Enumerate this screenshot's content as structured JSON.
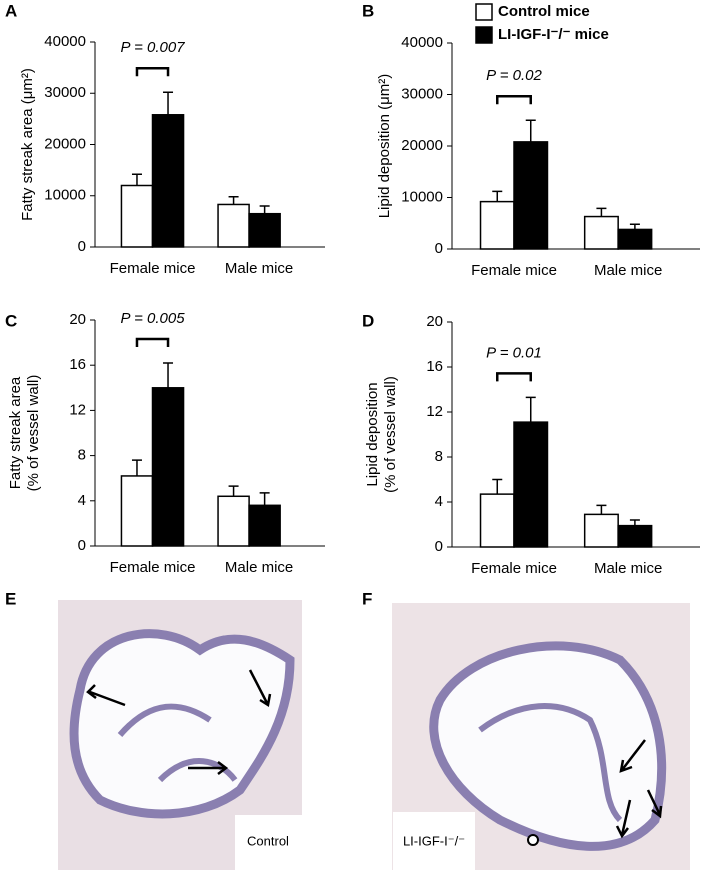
{
  "chart_data": [
    {
      "type": "bar",
      "panel_label": "A",
      "ylabel": [
        "Fatty streak  area (μm²)"
      ],
      "categories": [
        "Female mice",
        "Male mice"
      ],
      "series": [
        {
          "name": "Control mice",
          "color": "#ffffff",
          "values": [
            12000,
            8300
          ],
          "errors": [
            2200,
            1500
          ]
        },
        {
          "name": "LI-IGF-I⁻/⁻ mice",
          "color": "#000000",
          "values": [
            25800,
            6500
          ],
          "errors": [
            4400,
            1500
          ]
        }
      ],
      "ylim": [
        0,
        40000
      ],
      "yticks": [
        0,
        10000,
        20000,
        30000,
        40000
      ],
      "annotation": "P = 0.007"
    },
    {
      "type": "bar",
      "panel_label": "B",
      "ylabel": [
        "Lipid deposition  (μm²)"
      ],
      "categories": [
        "Female mice",
        "Male mice"
      ],
      "series": [
        {
          "name": "Control mice",
          "color": "#ffffff",
          "values": [
            9200,
            6300
          ],
          "errors": [
            2000,
            1600
          ]
        },
        {
          "name": "LI-IGF-I⁻/⁻ mice",
          "color": "#000000",
          "values": [
            20800,
            3800
          ],
          "errors": [
            4200,
            1000
          ]
        }
      ],
      "ylim": [
        0,
        40000
      ],
      "yticks": [
        0,
        10000,
        20000,
        30000,
        40000
      ],
      "annotation": "P = 0.02",
      "legend": true
    },
    {
      "type": "bar",
      "panel_label": "C",
      "ylabel": [
        "Fatty streak area",
        "(% of vessel wall)"
      ],
      "categories": [
        "Female mice",
        "Male mice"
      ],
      "series": [
        {
          "name": "Control mice",
          "color": "#ffffff",
          "values": [
            6.2,
            4.4
          ],
          "errors": [
            1.4,
            0.9
          ]
        },
        {
          "name": "LI-IGF-I⁻/⁻ mice",
          "color": "#000000",
          "values": [
            14,
            3.6
          ],
          "errors": [
            2.2,
            1.1
          ]
        }
      ],
      "ylim": [
        0,
        20
      ],
      "yticks": [
        0,
        4,
        8,
        12,
        16,
        20
      ],
      "annotation": "P = 0.005"
    },
    {
      "type": "bar",
      "panel_label": "D",
      "ylabel": [
        "Lipid deposition",
        "(% of vessel wall)"
      ],
      "categories": [
        "Female mice",
        "Male mice"
      ],
      "series": [
        {
          "name": "Control mice",
          "color": "#ffffff",
          "values": [
            4.7,
            2.9
          ],
          "errors": [
            1.3,
            0.8
          ]
        },
        {
          "name": "LI-IGF-I⁻/⁻ mice",
          "color": "#000000",
          "values": [
            11.1,
            1.9
          ],
          "errors": [
            2.2,
            0.5
          ]
        }
      ],
      "ylim": [
        0,
        20
      ],
      "yticks": [
        0,
        4,
        8,
        12,
        16,
        20
      ],
      "annotation": "P = 0.01"
    }
  ],
  "images": [
    {
      "panel_label": "E",
      "caption": "Control"
    },
    {
      "panel_label": "F",
      "caption": "LI-IGF-I⁻/⁻"
    }
  ]
}
